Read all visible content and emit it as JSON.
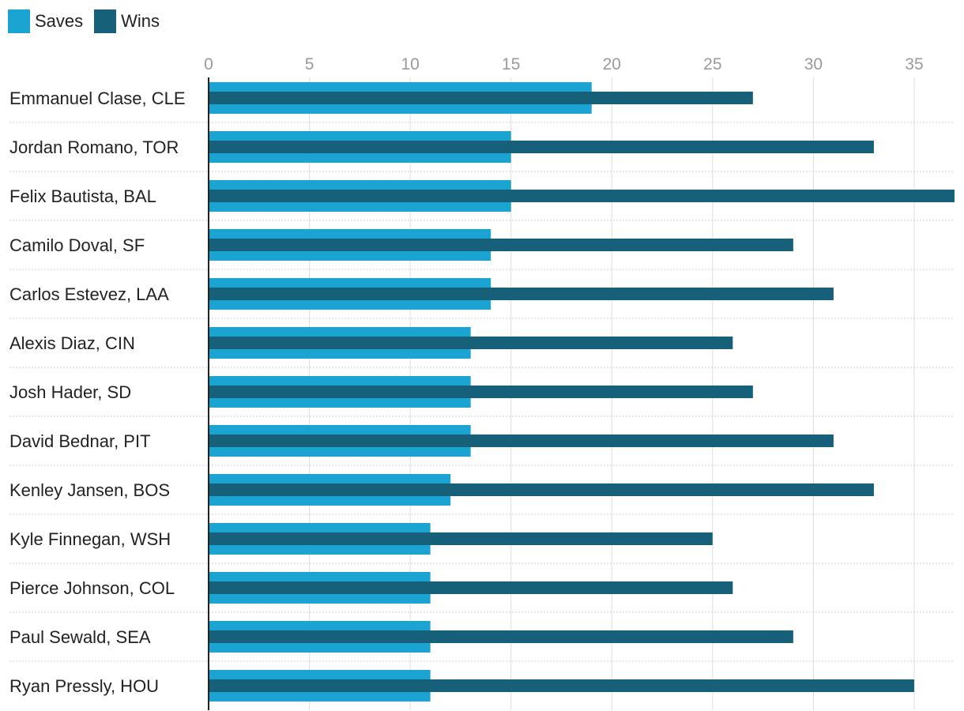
{
  "colors": {
    "saves": "#1ba3d1",
    "wins": "#17607a",
    "grid": "#dddddd",
    "axis": "#222222"
  },
  "chart_data": {
    "type": "bar",
    "orientation": "horizontal",
    "categories": [
      "Emmanuel Clase, CLE",
      "Jordan Romano, TOR",
      "Felix Bautista, BAL",
      "Camilo Doval, SF",
      "Carlos Estevez, LAA",
      "Alexis Diaz, CIN",
      "Josh Hader, SD",
      "David Bednar, PIT",
      "Kenley Jansen, BOS",
      "Kyle Finnegan, WSH",
      "Pierce Johnson, COL",
      "Paul Sewald, SEA",
      "Ryan Pressly, HOU"
    ],
    "series": [
      {
        "name": "Saves",
        "values": [
          19,
          15,
          15,
          14,
          14,
          13,
          13,
          13,
          12,
          11,
          11,
          11,
          11
        ]
      },
      {
        "name": "Wins",
        "values": [
          27,
          33,
          37,
          29,
          31,
          26,
          27,
          31,
          33,
          25,
          26,
          29,
          35
        ]
      }
    ],
    "xticks": [
      0,
      5,
      10,
      15,
      20,
      25,
      30,
      35
    ],
    "xlim": [
      0,
      37
    ],
    "grid": true,
    "legend": "top-left"
  }
}
